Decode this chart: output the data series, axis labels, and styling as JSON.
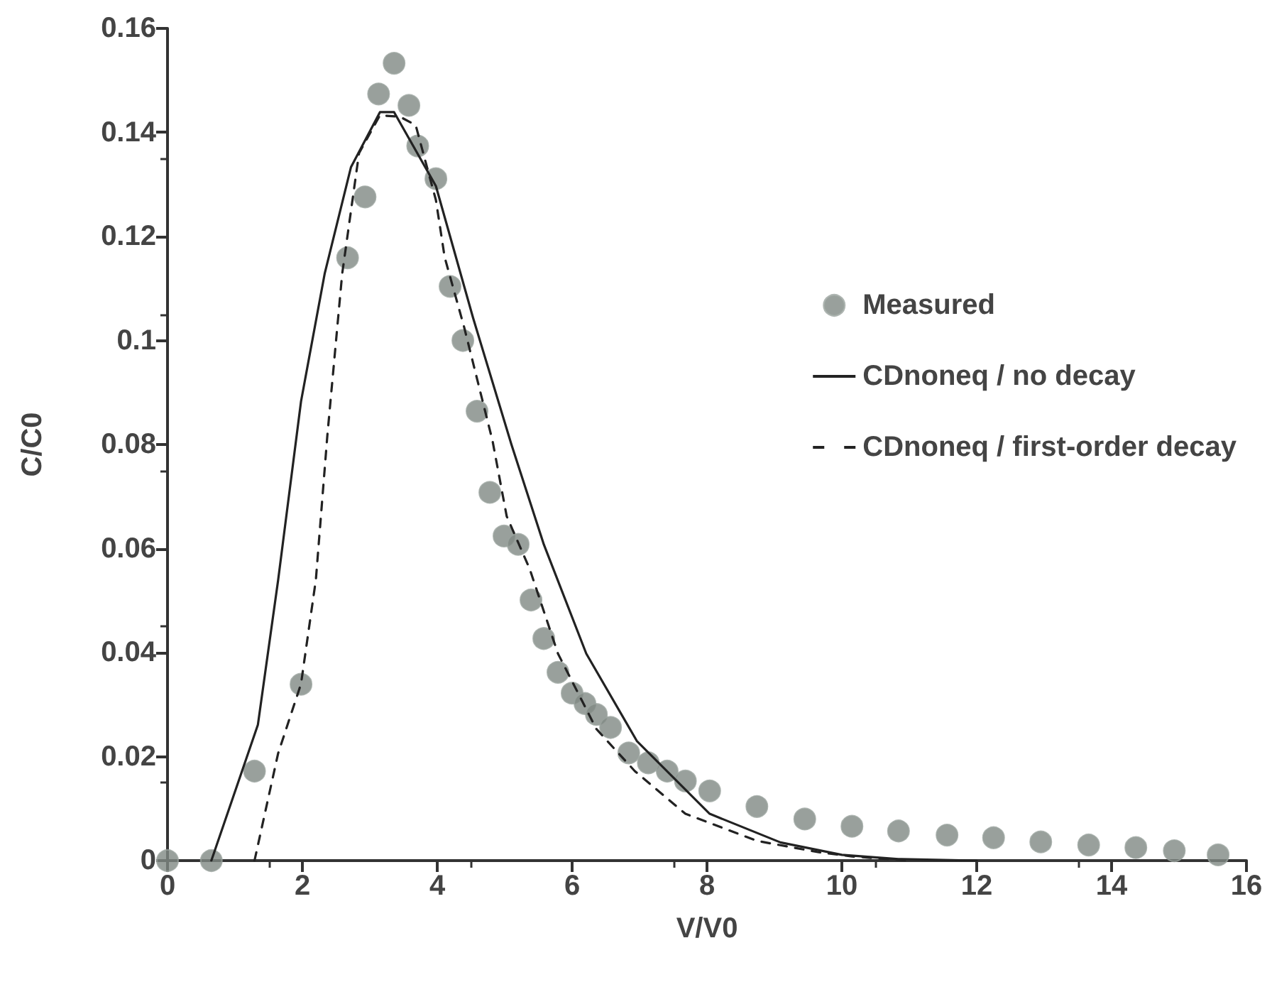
{
  "chart_data": {
    "type": "scatter",
    "xlabel": "V/V0",
    "ylabel": "C/C0",
    "xlim": [
      0,
      16
    ],
    "xticks": [
      0,
      2,
      4,
      6,
      8,
      10,
      12,
      14,
      16
    ],
    "ylim": [
      0,
      0.16
    ],
    "yticks": [
      0,
      0.02,
      0.04,
      0.06,
      0.08,
      0.1,
      0.12,
      0.14,
      0.16
    ],
    "grid": false,
    "legend": "right",
    "series": [
      {
        "name": "Measured",
        "marker": "circle",
        "color": "#7f8883",
        "x": [
          0,
          0.65,
          1.29,
          1.98,
          2.67,
          2.93,
          3.13,
          3.36,
          3.58,
          3.71,
          3.98,
          4.19,
          4.38,
          4.59,
          4.78,
          4.99,
          5.2,
          5.39,
          5.58,
          5.79,
          6.0,
          6.19,
          6.36,
          6.57,
          6.84,
          7.13,
          7.41,
          7.68,
          8.04,
          8.74,
          9.45,
          10.15,
          10.84,
          11.56,
          12.25,
          12.95,
          13.66,
          14.36,
          14.93,
          15.58
        ],
        "values": [
          0,
          0,
          0.0172,
          0.0339,
          0.1159,
          0.1276,
          0.1474,
          0.1533,
          0.1452,
          0.1374,
          0.1311,
          0.1104,
          0.1,
          0.0864,
          0.0708,
          0.0624,
          0.0608,
          0.0501,
          0.0427,
          0.0362,
          0.0322,
          0.0302,
          0.0281,
          0.0256,
          0.0207,
          0.0188,
          0.0172,
          0.0153,
          0.0134,
          0.0104,
          0.008,
          0.0066,
          0.0057,
          0.0049,
          0.0044,
          0.0036,
          0.003,
          0.0025,
          0.0019,
          0.0011
        ]
      },
      {
        "name": "CDnoneq / no decay",
        "type": "line",
        "line_style": "solid",
        "color": "#222222",
        "x": [
          0.65,
          1.34,
          1.64,
          1.98,
          2.33,
          2.72,
          3.15,
          3.36,
          3.98,
          4.53,
          5.1,
          5.58,
          6.21,
          6.96,
          8.04,
          9.09,
          10.0,
          10.84,
          12.0
        ],
        "values": [
          0,
          0.0261,
          0.0539,
          0.0883,
          0.1128,
          0.1333,
          0.1439,
          0.1439,
          0.1297,
          0.1044,
          0.08,
          0.0608,
          0.0398,
          0.023,
          0.009,
          0.0035,
          0.0011,
          0.0003,
          0
        ]
      },
      {
        "name": "CDnoneq / first-order decay",
        "type": "line",
        "line_style": "dashed",
        "color": "#222222",
        "x": [
          1.29,
          1.64,
          1.98,
          2.2,
          2.37,
          2.59,
          2.84,
          3.15,
          3.45,
          3.68,
          3.98,
          4.11,
          4.4,
          4.82,
          5.03,
          5.37,
          5.79,
          6.36,
          6.93,
          7.68,
          8.74,
          9.66,
          10.15,
          11.0
        ],
        "values": [
          0,
          0.0206,
          0.034,
          0.054,
          0.0817,
          0.1128,
          0.136,
          0.1433,
          0.143,
          0.1414,
          0.127,
          0.116,
          0.1025,
          0.0807,
          0.0662,
          0.0561,
          0.0398,
          0.0253,
          0.0172,
          0.009,
          0.0038,
          0.0016,
          0.0008,
          0
        ]
      }
    ]
  }
}
